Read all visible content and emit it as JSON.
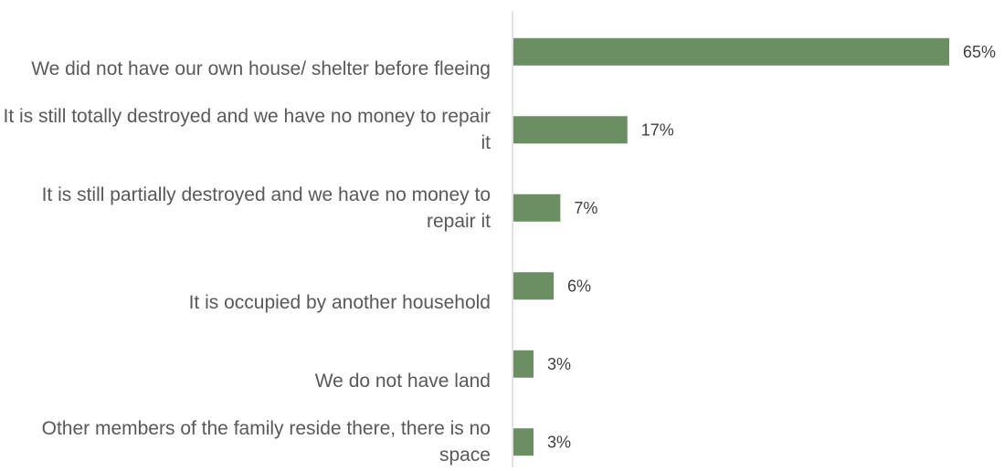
{
  "chart_data": {
    "type": "bar",
    "orientation": "horizontal",
    "categories": [
      "We did not have our own house/ shelter before fleeing",
      "It is still totally destroyed and we have no money to repair it",
      "It is still partially destroyed and we have no money to repair it",
      "It is occupied by another household",
      "We do not have land",
      "Other members of the family reside there, there is no space"
    ],
    "values": [
      65,
      17,
      7,
      6,
      3,
      3
    ],
    "value_labels": [
      "65%",
      "17%",
      "7%",
      "6%",
      "3%",
      "3%"
    ],
    "value_unit": "%",
    "xlim": [
      0,
      65
    ],
    "grid": false,
    "legend": "none",
    "bar_color": "#6b8f62",
    "axis_color": "#d9d9d9",
    "label_color": "#595959",
    "value_label_color": "#404040"
  }
}
